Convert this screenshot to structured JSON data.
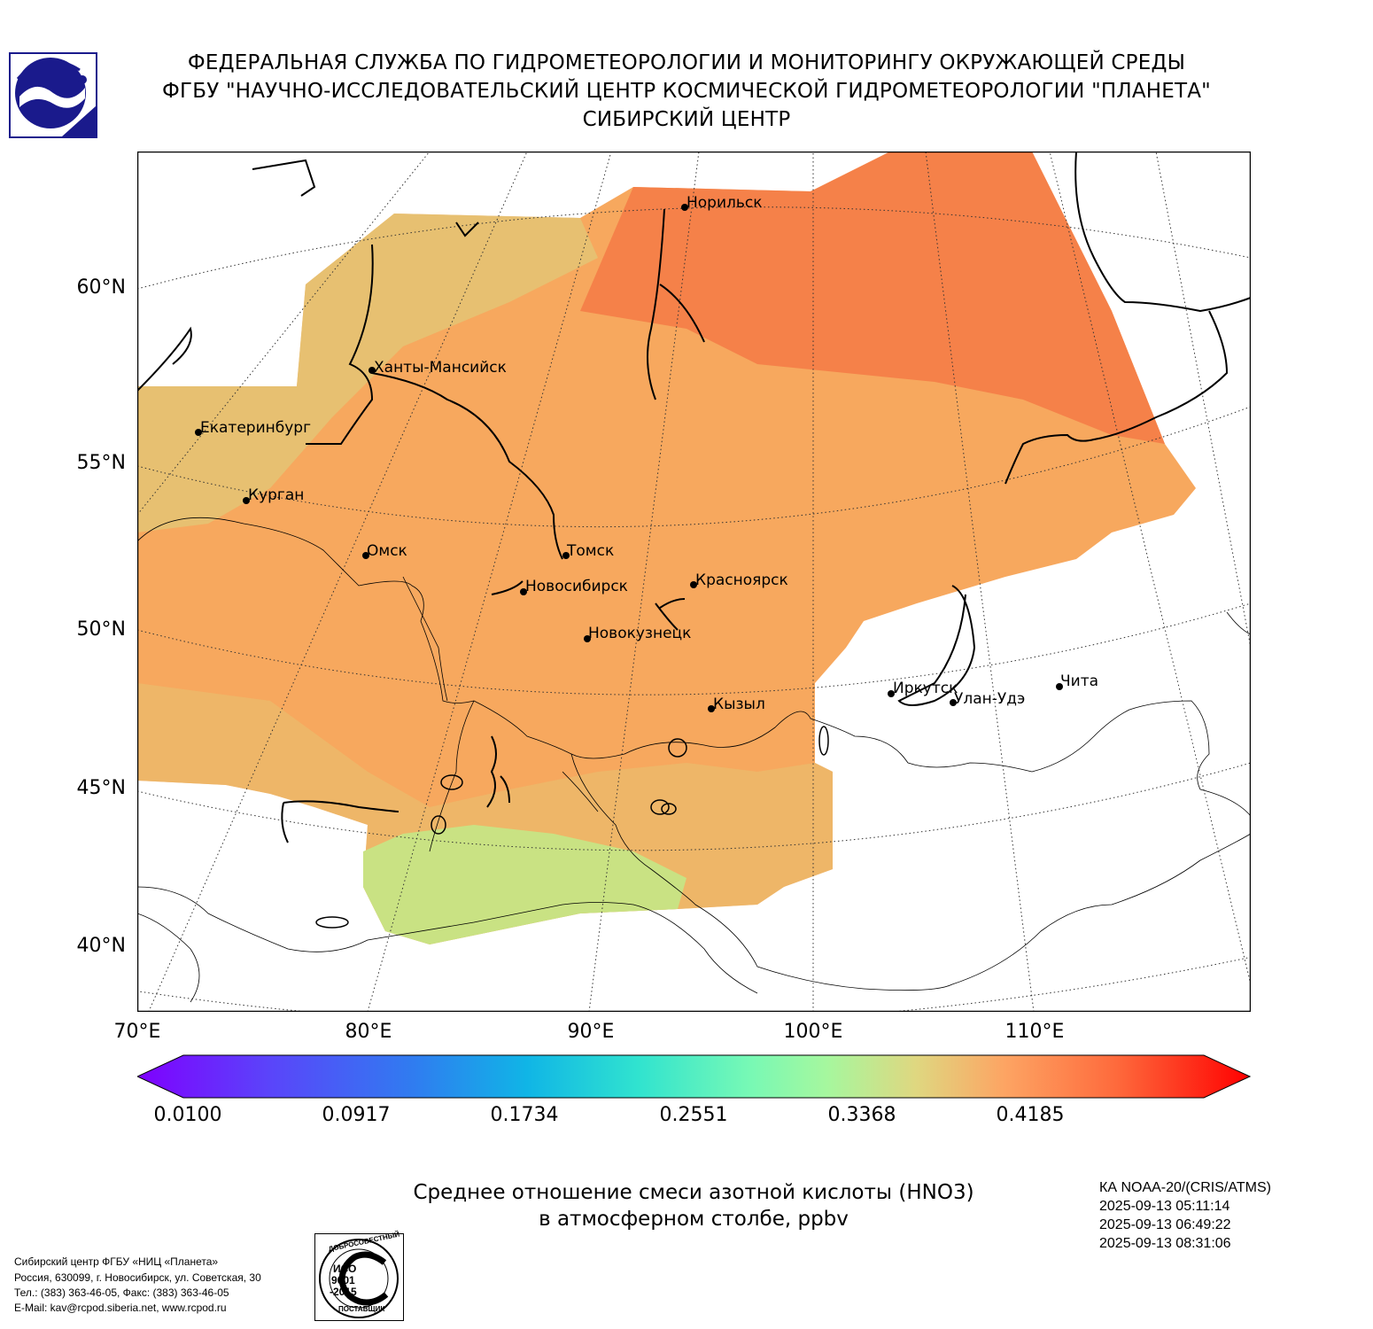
{
  "header": {
    "line1": "ФЕДЕРАЛЬНАЯ СЛУЖБА ПО ГИДРОМЕТЕОРОЛОГИИ И МОНИТОРИНГУ ОКРУЖАЮЩЕЙ СРЕДЫ",
    "line2": "ФГБУ \"НАУЧНО-ИССЛЕДОВАТЕЛЬСКИЙ ЦЕНТР КОСМИЧЕСКОЙ ГИДРОМЕТЕОРОЛОГИИ \"ПЛАНЕТА\"",
    "line3": "СИБИРСКИЙ ЦЕНТР"
  },
  "map": {
    "lat_labels": [
      "60°N",
      "55°N",
      "50°N",
      "45°N",
      "40°N"
    ],
    "lon_labels": [
      "70°E",
      "80°E",
      "90°E",
      "100°E",
      "110°E"
    ],
    "cities": [
      {
        "name": "Норильск"
      },
      {
        "name": "Ханты-Мансийск"
      },
      {
        "name": "Екатеринбург"
      },
      {
        "name": "Курган"
      },
      {
        "name": "Омск"
      },
      {
        "name": "Томск"
      },
      {
        "name": "Новосибирск"
      },
      {
        "name": "Красноярск"
      },
      {
        "name": "Новокузнецк"
      },
      {
        "name": "Кызыл"
      },
      {
        "name": "Иркутск"
      },
      {
        "name": "Улан-Удэ"
      },
      {
        "name": "Чита"
      }
    ]
  },
  "colorbar": {
    "ticks": [
      "0.0100",
      "0.0917",
      "0.1734",
      "0.2551",
      "0.3368",
      "0.4185"
    ],
    "min": 0.01,
    "max": 0.5
  },
  "title": {
    "line1": "Среднее отношение смеси азотной кислоты (HNO3)",
    "line2": "в атмосферном столбе, ppbv"
  },
  "satellite": {
    "name": "КА NOAA-20/(CRIS/ATMS)",
    "times": [
      "2025-09-13 05:11:14",
      "2025-09-13 06:49:22",
      "2025-09-13 08:31:06"
    ]
  },
  "contacts": [
    "Сибирский центр ФГБУ «НИЦ «Планета»",
    "Россия, 630099, г. Новосибирск, ул. Советская, 30",
    "Тел.: (383) 363-46-05, Факс: (383) 363-46-05",
    "E-Mail: kav@rcpod.siberia.net, www.rcpod.ru"
  ],
  "iso_stamp": {
    "top_text": "ДОБРОСОВЕСТНЫЙ",
    "line1": "ИСО",
    "line2": "9001",
    "line3": "-2015",
    "bottom_text": "ПОСТАВЩИК"
  },
  "colors": {
    "swath_main": "#f7a85e",
    "swath_north": "#f47a45",
    "swath_west": "#e2c878",
    "swath_south": "#c9e283"
  }
}
